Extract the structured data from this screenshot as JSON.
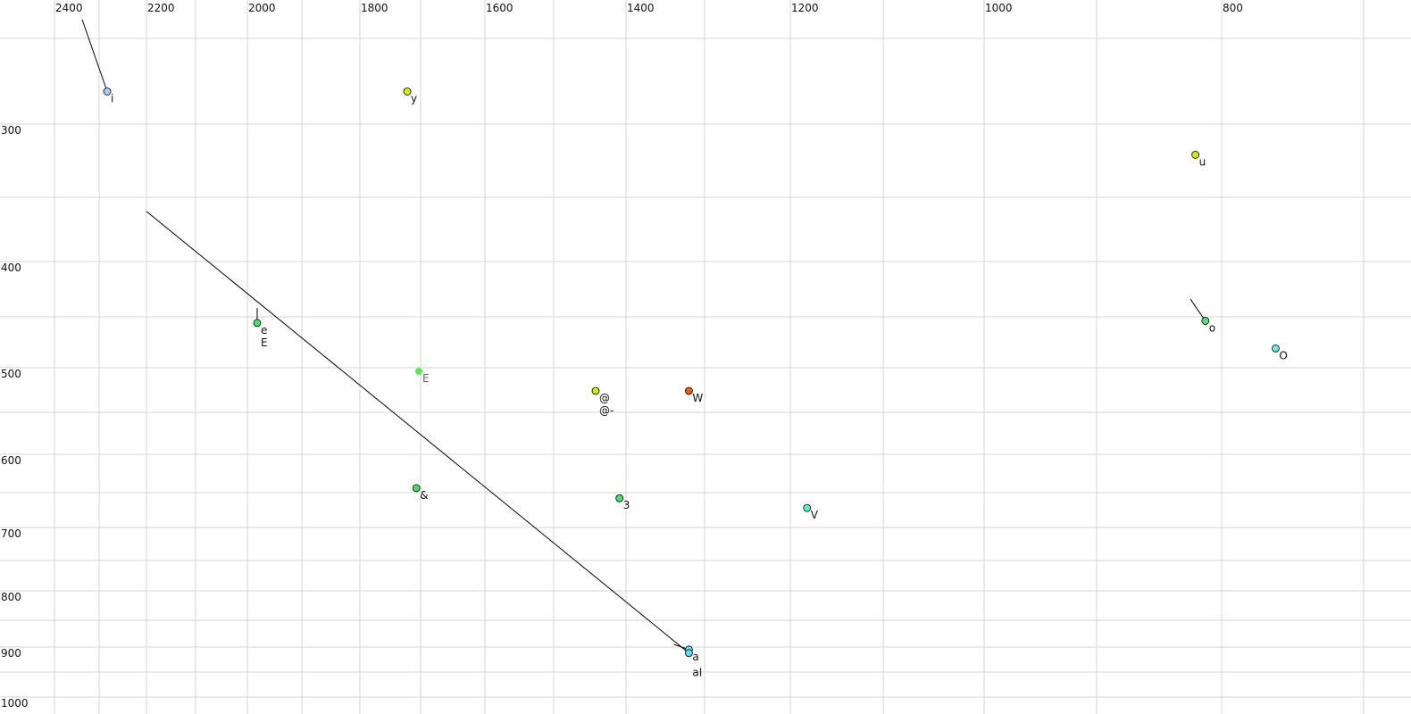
{
  "chart_data": {
    "type": "scatter",
    "title": "",
    "xlabel": "",
    "ylabel": "",
    "x_axis": {
      "reversed": true,
      "scale": "nonlinear (auditory)",
      "position": "top",
      "range": [
        2400,
        700
      ],
      "gridlines": [
        2400,
        2300,
        2200,
        2100,
        2000,
        1900,
        1800,
        1700,
        1600,
        1500,
        1400,
        1300,
        1200,
        1100,
        1000,
        900,
        800,
        700
      ],
      "tick_labels": [
        "2400",
        "2200",
        "2000",
        "1800",
        "1600",
        "1400",
        "1200",
        "1000",
        "800"
      ]
    },
    "y_axis": {
      "reversed": false,
      "scale": "nonlinear (auditory)",
      "position": "left",
      "range": [
        250,
        1000
      ],
      "gridlines": [
        250,
        300,
        350,
        400,
        450,
        500,
        550,
        600,
        650,
        700,
        750,
        800,
        850,
        900,
        950,
        1000
      ],
      "tick_labels": [
        "300",
        "400",
        "500",
        "600",
        "700",
        "800",
        "900",
        "1000"
      ]
    },
    "grid": true,
    "legend": "none",
    "points": [
      {
        "label": "i",
        "x": 2283,
        "y": 281,
        "color": "#a8cdf5",
        "outline": true,
        "trail_from": {
          "x": 2338,
          "y": 239
        }
      },
      {
        "label": "y",
        "x": 1722,
        "y": 281,
        "color": "#d6f000",
        "outline": true
      },
      {
        "label": "u",
        "x": 821,
        "y": 321,
        "color": "#c8f000",
        "outline": true
      },
      {
        "label": "o",
        "x": 813,
        "y": 454,
        "color": "#50e27a",
        "outline": true,
        "trail_from": {
          "x": 825,
          "y": 434
        }
      },
      {
        "label": "O",
        "x": 762,
        "y": 481,
        "color": "#66e8ea",
        "outline": true
      },
      {
        "label": "e",
        "x": 1982,
        "y": 456,
        "color": "#4fe06e",
        "outline": true,
        "trail_from": {
          "x": 1982,
          "y": 442
        }
      },
      {
        "label": "E",
        "x": 1982,
        "y": 456,
        "color": "#4fe06e",
        "outline": true,
        "label_only": true
      },
      {
        "label": "E",
        "x": 1703,
        "y": 504,
        "color": "#5ae85a",
        "outline": false,
        "label_color": "#666666"
      },
      {
        "label": "@",
        "x": 1442,
        "y": 526,
        "color": "#d0f000",
        "outline": true
      },
      {
        "label": "@-",
        "x": 1442,
        "y": 526,
        "color": "#d0f000",
        "outline": true,
        "label_only": true
      },
      {
        "label": "W",
        "x": 1320,
        "y": 526,
        "color": "#ee6010",
        "outline": true
      },
      {
        "label": "&",
        "x": 1707,
        "y": 644,
        "color": "#46e064",
        "outline": true
      },
      {
        "label": "3",
        "x": 1409,
        "y": 658,
        "color": "#46e064",
        "outline": true
      },
      {
        "label": "V",
        "x": 1182,
        "y": 672,
        "color": "#5af0bf",
        "outline": true
      },
      {
        "label": "a",
        "x": 1320,
        "y": 905,
        "color": "#66d8f0",
        "outline": true,
        "trail_from": {
          "x": 1339,
          "y": 895
        }
      },
      {
        "label": "aI",
        "x": 1320,
        "y": 912,
        "color": "#66d8f0",
        "outline": true,
        "trail_from": {
          "x": 2200,
          "y": 361
        }
      }
    ]
  }
}
